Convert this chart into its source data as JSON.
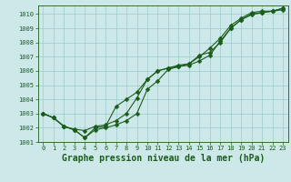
{
  "title": "Graphe pression niveau de la mer (hPa)",
  "bg_color": "#cce8e8",
  "grid_color": "#99cccc",
  "line_color": "#1a5c1a",
  "xlim": [
    -0.5,
    23.5
  ],
  "ylim": [
    1001.0,
    1010.6
  ],
  "yticks": [
    1001,
    1002,
    1003,
    1004,
    1005,
    1006,
    1007,
    1008,
    1009,
    1010
  ],
  "xticks": [
    0,
    1,
    2,
    3,
    4,
    5,
    6,
    7,
    8,
    9,
    10,
    11,
    12,
    13,
    14,
    15,
    16,
    17,
    18,
    19,
    20,
    21,
    22,
    23
  ],
  "line1_x": [
    0,
    1,
    2,
    3,
    4,
    5,
    6,
    7,
    8,
    9,
    10,
    11,
    12,
    13,
    14,
    15,
    16,
    17,
    18,
    19,
    20,
    21,
    22,
    23
  ],
  "line1_y": [
    1003.0,
    1002.7,
    1002.1,
    1001.9,
    1001.8,
    1002.1,
    1002.2,
    1002.5,
    1003.0,
    1004.1,
    1005.4,
    1006.0,
    1006.2,
    1006.3,
    1006.4,
    1006.7,
    1007.1,
    1008.1,
    1009.0,
    1009.6,
    1010.0,
    1010.1,
    1010.2,
    1010.3
  ],
  "line2_x": [
    0,
    1,
    2,
    3,
    4,
    5,
    6,
    7,
    8,
    9,
    10,
    11,
    12,
    13,
    14,
    15,
    16,
    17,
    18,
    19,
    20,
    21,
    22,
    23
  ],
  "line2_y": [
    1003.0,
    1002.7,
    1002.1,
    1001.85,
    1001.3,
    1001.85,
    1002.0,
    1002.2,
    1002.5,
    1003.0,
    1004.7,
    1005.3,
    1006.1,
    1006.3,
    1006.5,
    1007.0,
    1007.6,
    1008.3,
    1009.2,
    1009.7,
    1010.1,
    1010.2,
    1010.2,
    1010.4
  ],
  "line3_x": [
    0,
    1,
    2,
    3,
    4,
    5,
    6,
    7,
    8,
    9,
    10,
    11,
    12,
    13,
    14,
    15,
    16,
    17,
    18,
    19,
    20,
    21,
    22,
    23
  ],
  "line3_y": [
    1003.0,
    1002.7,
    1002.1,
    1001.85,
    1001.3,
    1002.0,
    1002.1,
    1003.5,
    1004.0,
    1004.5,
    1005.4,
    1006.0,
    1006.2,
    1006.4,
    1006.5,
    1007.1,
    1007.3,
    1008.0,
    1009.0,
    1009.6,
    1009.95,
    1010.1,
    1010.2,
    1010.4
  ],
  "tick_fontsize": 5.0,
  "title_fontsize": 7.0,
  "marker_size": 2.5,
  "line_width": 0.8
}
